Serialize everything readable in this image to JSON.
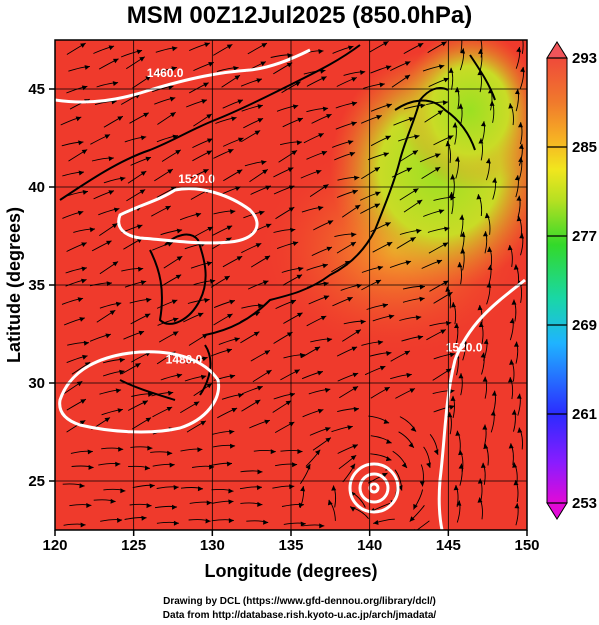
{
  "title": "MSM 00Z12Jul2025 (850.0hPa)",
  "map": {
    "x_axis": {
      "label": "Longitude (degrees)",
      "range": [
        120,
        150
      ],
      "ticks": [
        {
          "value": 120,
          "label": "120"
        },
        {
          "value": 125,
          "label": "125"
        },
        {
          "value": 130,
          "label": "130"
        },
        {
          "value": 135,
          "label": "135"
        },
        {
          "value": 140,
          "label": "140"
        },
        {
          "value": 145,
          "label": "145"
        },
        {
          "value": 150,
          "label": "150"
        }
      ]
    },
    "y_axis": {
      "label": "Latitude  (degrees)",
      "range": [
        22.5,
        47.5
      ],
      "ticks": [
        {
          "value": 25,
          "label": "25"
        },
        {
          "value": 30,
          "label": "30"
        },
        {
          "value": 35,
          "label": "35"
        },
        {
          "value": 40,
          "label": "40"
        },
        {
          "value": 45,
          "label": "45"
        }
      ]
    },
    "contour_labels": [
      {
        "text": "1460.0",
        "lon": 127.0,
        "lat": 45.6
      },
      {
        "text": "1520.0",
        "lon": 129.0,
        "lat": 40.2
      },
      {
        "text": "1480.0",
        "lon": 128.2,
        "lat": 31.0
      },
      {
        "text": "1520.0",
        "lon": 146.0,
        "lat": 31.6
      }
    ],
    "colorbar": {
      "ticks": [
        {
          "value": 293,
          "label": "293"
        },
        {
          "value": 285,
          "label": "285"
        },
        {
          "value": 277,
          "label": "277"
        },
        {
          "value": 269,
          "label": "269"
        },
        {
          "value": 261,
          "label": "261"
        },
        {
          "value": 253,
          "label": "253"
        }
      ],
      "range": [
        253,
        293
      ],
      "colors": [
        "#e20ad7",
        "#8a1cff",
        "#2b2bff",
        "#1fb4ff",
        "#19d7a6",
        "#33d92a",
        "#9be022",
        "#f1e61e",
        "#f6b024",
        "#f07a2c",
        "#ef4a3a",
        "#f0555a"
      ]
    },
    "colors": {
      "warm_field": "#ef3a2c",
      "mid_field": "#f0822c",
      "cool_field": "#9fd62a",
      "contour": "#ffffff",
      "coast": "#000000",
      "grid": "#000000"
    }
  },
  "credits": [
    "Drawing by DCL (https://www.gfd-dennou.org/library/dcl/)",
    "Data from http://database.rish.kyoto-u.ac.jp/arch/jmadata/"
  ]
}
